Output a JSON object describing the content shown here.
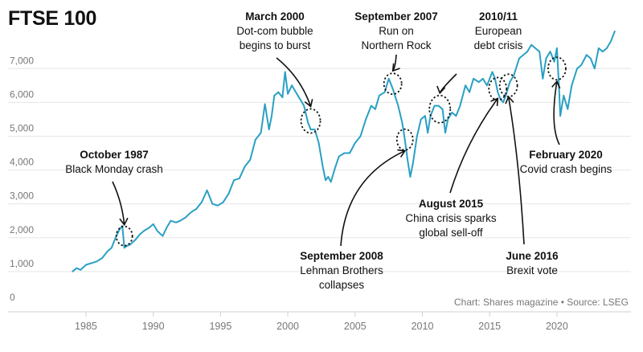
{
  "title": "FTSE 100",
  "source": "Chart: Shares magazine • Source: LSEG",
  "colors": {
    "line": "#2aa0c4",
    "grid": "#e6e6e6",
    "axis": "#cfcfcf",
    "text": "#111111",
    "tick": "#777777"
  },
  "chart_data": {
    "type": "line",
    "title": "FTSE 100",
    "xlabel": "",
    "ylabel": "",
    "xlim": [
      1981,
      2025.5
    ],
    "ylim": [
      0,
      7600
    ],
    "x_ticks": [
      1985,
      1990,
      1995,
      2000,
      2005,
      2010,
      2015,
      2020
    ],
    "y_ticks": [
      0,
      1000,
      2000,
      3000,
      4000,
      5000,
      6000,
      7000
    ],
    "y_tick_labels": [
      "0",
      "1,000",
      "2,000",
      "3,000",
      "4,000",
      "5,000",
      "6,000",
      "7,000"
    ],
    "grid": "horizontal",
    "series": [
      {
        "name": "",
        "x": [
          1984.0,
          1984.3,
          1984.6,
          1985.0,
          1985.4,
          1985.8,
          1986.2,
          1986.6,
          1986.9,
          1987.2,
          1987.5,
          1987.7,
          1987.85,
          1988.0,
          1988.3,
          1988.7,
          1989.0,
          1989.3,
          1989.7,
          1990.0,
          1990.3,
          1990.7,
          1991.0,
          1991.3,
          1991.7,
          1992.0,
          1992.4,
          1992.8,
          1993.2,
          1993.6,
          1994.0,
          1994.4,
          1994.8,
          1995.2,
          1995.6,
          1996.0,
          1996.4,
          1996.8,
          1997.2,
          1997.6,
          1998.0,
          1998.3,
          1998.6,
          1998.8,
          1999.0,
          1999.3,
          1999.6,
          1999.8,
          2000.0,
          2000.3,
          2000.6,
          2000.9,
          2001.2,
          2001.5,
          2001.7,
          2002.0,
          2002.3,
          2002.6,
          2002.8,
          2003.0,
          2003.2,
          2003.5,
          2003.8,
          2004.2,
          2004.6,
          2005.0,
          2005.4,
          2005.8,
          2006.2,
          2006.5,
          2006.8,
          2007.2,
          2007.5,
          2007.8,
          2008.2,
          2008.5,
          2008.7,
          2008.9,
          2009.1,
          2009.3,
          2009.6,
          2009.9,
          2010.2,
          2010.4,
          2010.6,
          2010.9,
          2011.2,
          2011.5,
          2011.7,
          2011.9,
          2012.2,
          2012.5,
          2012.8,
          2013.2,
          2013.5,
          2013.8,
          2014.2,
          2014.5,
          2014.8,
          2015.2,
          2015.4,
          2015.6,
          2015.8,
          2016.0,
          2016.2,
          2016.5,
          2016.8,
          2017.2,
          2017.5,
          2017.8,
          2018.1,
          2018.4,
          2018.7,
          2018.95,
          2019.2,
          2019.5,
          2019.8,
          2020.0,
          2020.15,
          2020.25,
          2020.5,
          2020.8,
          2021.1,
          2021.5,
          2021.8,
          2022.2,
          2022.5,
          2022.8,
          2023.1,
          2023.4,
          2023.7,
          2024.0,
          2024.3
        ],
        "values": [
          1000,
          1100,
          1050,
          1200,
          1250,
          1300,
          1400,
          1600,
          1700,
          2000,
          2250,
          2350,
          1700,
          1750,
          1800,
          1950,
          2100,
          2200,
          2300,
          2400,
          2200,
          2050,
          2300,
          2500,
          2450,
          2500,
          2600,
          2750,
          2850,
          3050,
          3400,
          3000,
          2950,
          3050,
          3300,
          3700,
          3750,
          4100,
          4300,
          4900,
          5100,
          5950,
          5200,
          5600,
          6200,
          6300,
          6150,
          6900,
          6250,
          6500,
          6300,
          6100,
          5900,
          5400,
          5200,
          5200,
          4800,
          4100,
          3700,
          3800,
          3650,
          4050,
          4400,
          4500,
          4500,
          4800,
          5000,
          5500,
          5900,
          5800,
          6200,
          6300,
          6700,
          6400,
          5900,
          5400,
          4900,
          4300,
          3800,
          4200,
          5000,
          5500,
          5600,
          5100,
          5600,
          5900,
          5900,
          5800,
          5100,
          5500,
          5700,
          5600,
          5900,
          6500,
          6300,
          6700,
          6600,
          6700,
          6500,
          6900,
          6700,
          6300,
          6100,
          6000,
          6200,
          6600,
          6800,
          7300,
          7400,
          7500,
          7700,
          7600,
          7500,
          6700,
          7300,
          7500,
          7200,
          7600,
          6500,
          5600,
          6200,
          5800,
          6500,
          7000,
          7100,
          7400,
          7300,
          7000,
          7600,
          7500,
          7600,
          7800,
          8100
        ]
      }
    ],
    "annotations": [
      {
        "heading": "October 1987",
        "text": [
          "Black Monday crash"
        ],
        "x": 1987.85,
        "y": 2050
      },
      {
        "heading": "March 2000",
        "text": [
          "Dot-com bubble",
          "begins to burst"
        ],
        "x": 2001.7,
        "y": 5450
      },
      {
        "heading": "September 2007",
        "text": [
          "Run on",
          "Northern Rock"
        ],
        "x": 2007.8,
        "y": 6550
      },
      {
        "heading": "2010/11",
        "text": [
          "European",
          "debt crisis"
        ],
        "x": 2011.3,
        "y": 5800
      },
      {
        "heading": "September 2008",
        "text": [
          "Lehman Brothers",
          "collapses"
        ],
        "x": 2008.7,
        "y": 4900
      },
      {
        "heading": "August 2015",
        "text": [
          "China crisis sparks",
          "global sell-off"
        ],
        "x": 2015.6,
        "y": 6400
      },
      {
        "heading": "June 2016",
        "text": [
          "Brexit vote"
        ],
        "x": 2016.4,
        "y": 6500
      },
      {
        "heading": "February 2020",
        "text": [
          "Covid crash begins"
        ],
        "x": 2020.0,
        "y": 7000
      }
    ]
  }
}
